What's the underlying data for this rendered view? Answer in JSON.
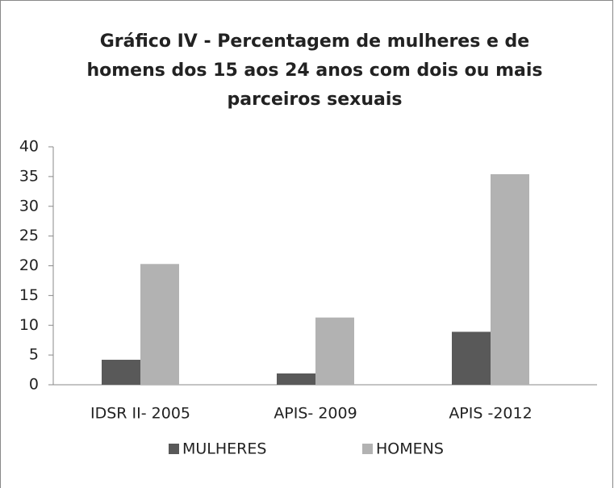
{
  "chart_data": {
    "type": "bar",
    "title": "Gráfico IV - Percentagem de mulheres  e de homens dos 15 aos 24 anos com dois ou mais parceiros sexuais",
    "categories": [
      "IDSR II- 2005",
      "APIS- 2009",
      "APIS -2012"
    ],
    "series": [
      {
        "name": "MULHERES",
        "color": "#595959",
        "values": [
          4.2,
          1.9,
          8.9
        ]
      },
      {
        "name": "HOMENS",
        "color": "#b2b2b2",
        "values": [
          20.3,
          11.3,
          35.4
        ]
      }
    ],
    "ylim": [
      0,
      40
    ],
    "yticks": [
      0,
      5,
      10,
      15,
      20,
      25,
      30,
      35,
      40
    ],
    "grid": false,
    "legend": "bottom"
  }
}
